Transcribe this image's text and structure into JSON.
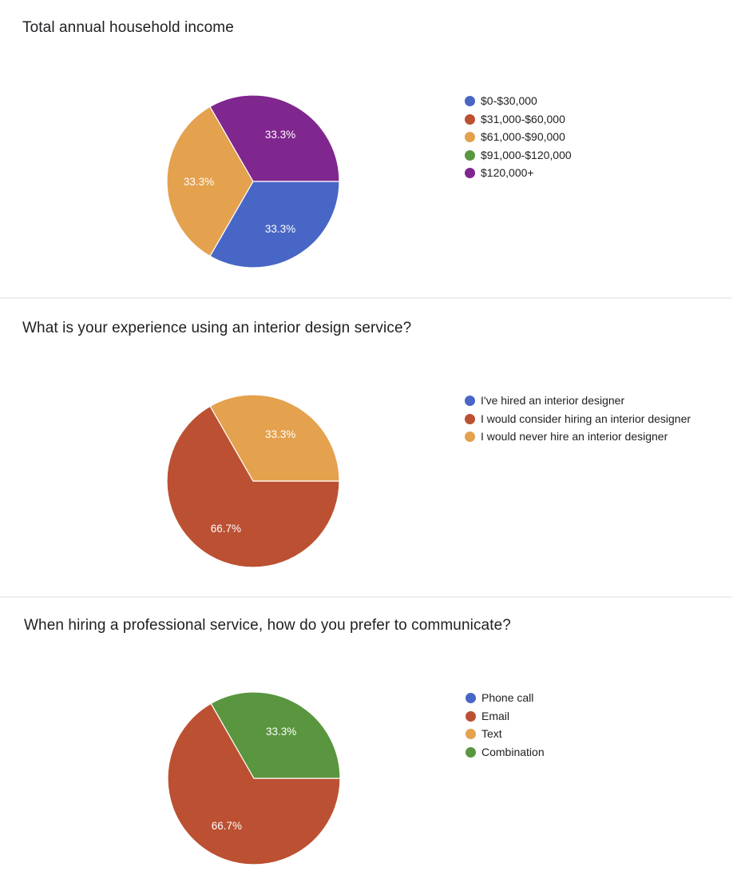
{
  "colors": {
    "blue": "#4866c5",
    "red": "#bc5032",
    "orange": "#e4a14e",
    "green": "#5a963f",
    "purple": "#80268f"
  },
  "chart_data": [
    {
      "type": "pie",
      "title": "Total annual household income",
      "legend_position": "right",
      "categories": [
        "$0-$30,000",
        "$31,000-$60,000",
        "$61,000-$90,000",
        "$91,000-$120,000",
        "$120,000+"
      ],
      "values": [
        33.3,
        0,
        33.3,
        0,
        33.3
      ],
      "colors": [
        "#4866c5",
        "#bc5032",
        "#e4a14e",
        "#5a963f",
        "#80268f"
      ],
      "labels": [
        "33.3%",
        "",
        "33.3%",
        "",
        "33.3%"
      ]
    },
    {
      "type": "pie",
      "title": "What is your experience using an interior design service?",
      "legend_position": "right",
      "categories": [
        "I've hired an interior designer",
        "I would consider hiring an interior designer",
        "I would never hire an interior designer"
      ],
      "values": [
        0,
        66.7,
        33.3
      ],
      "colors": [
        "#4866c5",
        "#bc5032",
        "#e4a14e"
      ],
      "labels": [
        "",
        "66.7%",
        "33.3%"
      ]
    },
    {
      "type": "pie",
      "title": "When hiring a professional service, how do you prefer to communicate?",
      "legend_position": "right",
      "categories": [
        "Phone call",
        "Email",
        "Text",
        "Combination"
      ],
      "values": [
        0,
        66.7,
        0,
        33.3
      ],
      "colors": [
        "#4866c5",
        "#bc5032",
        "#e4a14e",
        "#5a963f"
      ],
      "labels": [
        "",
        "66.7%",
        "",
        "33.3%"
      ]
    }
  ]
}
